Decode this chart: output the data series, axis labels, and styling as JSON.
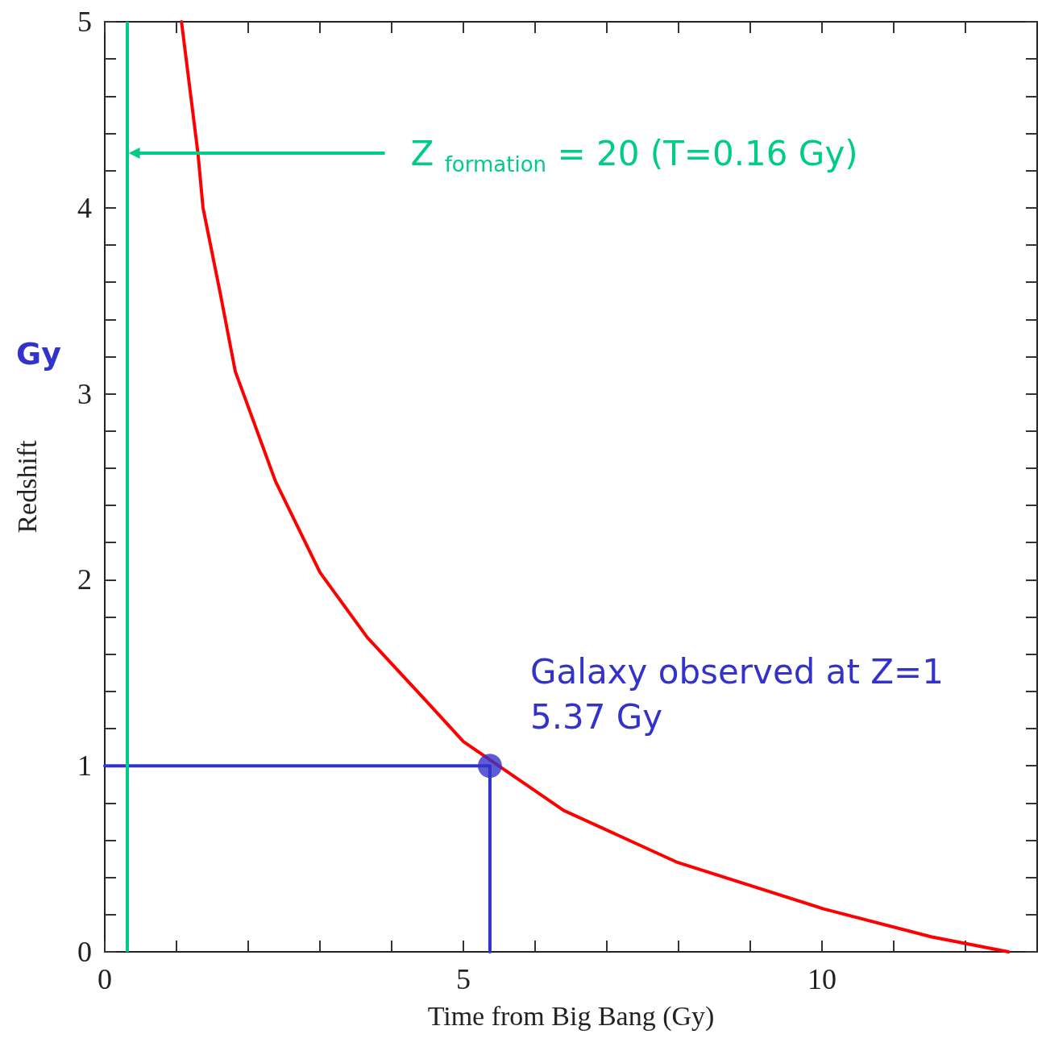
{
  "chart_data": {
    "type": "line",
    "xlabel": "Time from Big Bang (Gy)",
    "ylabel": "Redshift",
    "xlim": [
      0,
      13
    ],
    "ylim": [
      0,
      5
    ],
    "xticks": [
      0,
      {
        "value": 1,
        "label": null
      },
      {
        "value": 2,
        "label": null
      },
      {
        "value": 3,
        "label": null
      },
      {
        "value": 4,
        "label": null
      },
      5,
      {
        "value": 6,
        "label": null
      },
      {
        "value": 7,
        "label": null
      },
      {
        "value": 8,
        "label": null
      },
      {
        "value": 9,
        "label": null
      },
      10,
      {
        "value": 11,
        "label": null
      },
      {
        "value": 12,
        "label": null
      }
    ],
    "yticks": [
      0,
      {
        "value": 0.2,
        "label": null
      },
      {
        "value": 0.4,
        "label": null
      },
      {
        "value": 0.6,
        "label": null
      },
      {
        "value": 0.8,
        "label": null
      },
      1,
      {
        "value": 1.2,
        "label": null
      },
      {
        "value": 1.4,
        "label": null
      },
      {
        "value": 1.6,
        "label": null
      },
      {
        "value": 1.8,
        "label": null
      },
      2,
      {
        "value": 2.2,
        "label": null
      },
      {
        "value": 2.4,
        "label": null
      },
      {
        "value": 2.6,
        "label": null
      },
      {
        "value": 2.8,
        "label": null
      },
      3,
      {
        "value": 3.2,
        "label": null
      },
      {
        "value": 3.4,
        "label": null
      },
      {
        "value": 3.6,
        "label": null
      },
      {
        "value": 3.8,
        "label": null
      },
      4,
      {
        "value": 4.2,
        "label": null
      },
      {
        "value": 4.4,
        "label": null
      },
      {
        "value": 4.6,
        "label": null
      },
      {
        "value": 4.8,
        "label": null
      },
      5
    ],
    "grid": false,
    "marker": "none",
    "line_style": "solid",
    "series": [
      {
        "color": "#ff0000",
        "x": [
          1.07,
          1.3,
          1.37,
          1.61,
          1.82,
          2.38,
          3.0,
          3.66,
          4.55,
          5.0,
          6.4,
          7.99,
          10.03,
          11.53,
          12.6
        ],
        "values": [
          5.0,
          4.29,
          4.0,
          3.54,
          3.12,
          2.53,
          2.04,
          1.69,
          1.32,
          1.13,
          0.76,
          0.48,
          0.23,
          0.08,
          0
        ]
      },
      {
        "type": "line",
        "color": "#3333cc",
        "x": [
          0,
          5.37,
          5.37
        ],
        "values": [
          1,
          1,
          0
        ]
      },
      {
        "type": "scatter",
        "color": "#3333cc",
        "marker": "circle",
        "x": [
          5.37
        ],
        "values": [
          1
        ]
      }
    ],
    "ref_lines": [
      {
        "axis": "x",
        "value": 0.31,
        "color": "#00cc88",
        "line_style": "solid"
      }
    ],
    "annotations": [
      "Z $_{formation}$ = 20 (T=0.16 Gy)",
      {
        "text": "Galaxy observed at Z=1\n5.37 Gy",
        "x": 5.37,
        "y": 1
      },
      "Gy"
    ]
  }
}
